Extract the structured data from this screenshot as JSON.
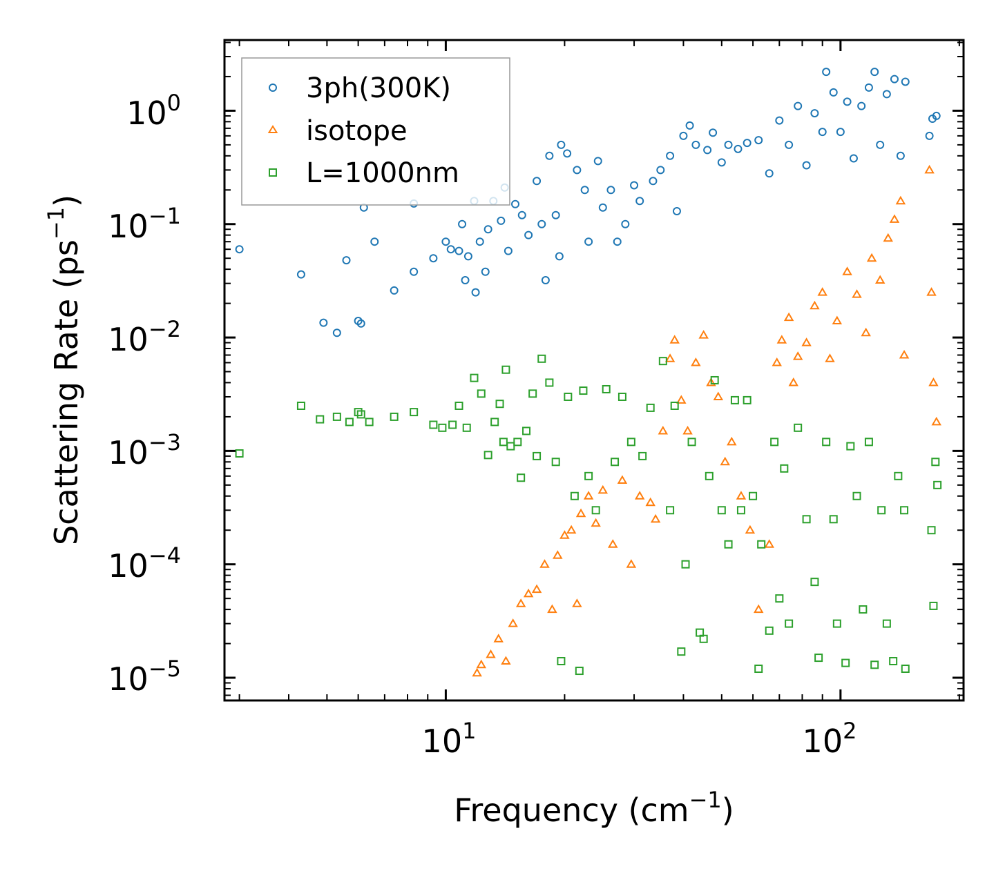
{
  "chart_data": {
    "type": "scatter",
    "title": "",
    "xlabel": "Frequency (cm",
    "xlabel_sup": "−1",
    "xlabel_close": ")",
    "ylabel": "Scattering Rate (ps",
    "ylabel_sup": "−1",
    "ylabel_close": ")",
    "xscale": "log",
    "yscale": "log",
    "xlim": [
      2.75,
      205
    ],
    "ylim": [
      6.3e-06,
      4.2
    ],
    "x_ticks": [
      {
        "base": "10",
        "exp": "1",
        "value": 10
      },
      {
        "base": "10",
        "exp": "2",
        "value": 100
      }
    ],
    "y_ticks": [
      {
        "base": "10",
        "exp": "0",
        "value": 1
      },
      {
        "base": "10",
        "exp": "−1",
        "value": 0.1
      },
      {
        "base": "10",
        "exp": "−2",
        "value": 0.01
      },
      {
        "base": "10",
        "exp": "−3",
        "value": 0.001
      },
      {
        "base": "10",
        "exp": "−4",
        "value": 0.0001
      },
      {
        "base": "10",
        "exp": "−5",
        "value": 1e-05
      }
    ],
    "legend_position": "top-left",
    "series": [
      {
        "name": "3ph(300K)",
        "marker": "circle",
        "color": "#1f77b4",
        "points": [
          [
            3.0,
            0.06
          ],
          [
            4.3,
            0.036
          ],
          [
            4.9,
            0.0135
          ],
          [
            5.3,
            0.011
          ],
          [
            5.6,
            0.048
          ],
          [
            6.0,
            0.014
          ],
          [
            6.1,
            0.0133
          ],
          [
            6.2,
            0.14
          ],
          [
            6.6,
            0.07
          ],
          [
            7.4,
            0.026
          ],
          [
            8.3,
            0.038
          ],
          [
            8.3,
            0.152
          ],
          [
            9.3,
            0.05
          ],
          [
            10.0,
            0.07
          ],
          [
            10.3,
            0.06
          ],
          [
            10.8,
            0.058
          ],
          [
            11.0,
            0.1
          ],
          [
            11.2,
            0.032
          ],
          [
            11.4,
            0.052
          ],
          [
            11.8,
            0.16
          ],
          [
            11.9,
            0.025
          ],
          [
            12.2,
            0.07
          ],
          [
            12.6,
            0.038
          ],
          [
            12.8,
            0.09
          ],
          [
            13.2,
            0.16
          ],
          [
            13.8,
            0.107
          ],
          [
            14.1,
            0.21
          ],
          [
            14.4,
            0.058
          ],
          [
            15.0,
            0.15
          ],
          [
            15.6,
            0.12
          ],
          [
            16.2,
            0.08
          ],
          [
            17.0,
            0.24
          ],
          [
            17.5,
            0.1
          ],
          [
            17.9,
            0.032
          ],
          [
            18.3,
            0.4
          ],
          [
            19.0,
            0.12
          ],
          [
            19.4,
            0.052
          ],
          [
            19.6,
            0.5
          ],
          [
            20.3,
            0.42
          ],
          [
            21.5,
            0.3
          ],
          [
            22.5,
            0.2
          ],
          [
            23.0,
            0.07
          ],
          [
            24.3,
            0.36
          ],
          [
            25.0,
            0.14
          ],
          [
            26.2,
            0.2
          ],
          [
            27.2,
            0.07
          ],
          [
            28.5,
            0.1
          ],
          [
            30.0,
            0.22
          ],
          [
            31.0,
            0.16
          ],
          [
            33.5,
            0.24
          ],
          [
            35.0,
            0.3
          ],
          [
            37.0,
            0.4
          ],
          [
            38.5,
            0.13
          ],
          [
            40.0,
            0.6
          ],
          [
            41.5,
            0.74
          ],
          [
            43.0,
            0.5
          ],
          [
            46.0,
            0.45
          ],
          [
            47.5,
            0.64
          ],
          [
            50.0,
            0.35
          ],
          [
            52.0,
            0.5
          ],
          [
            55.0,
            0.46
          ],
          [
            58.0,
            0.52
          ],
          [
            62.0,
            0.55
          ],
          [
            66.0,
            0.28
          ],
          [
            70.0,
            0.82
          ],
          [
            74.0,
            0.5
          ],
          [
            78.0,
            1.1
          ],
          [
            82.0,
            0.33
          ],
          [
            86.0,
            0.95
          ],
          [
            90.0,
            0.65
          ],
          [
            92.0,
            2.2
          ],
          [
            96.0,
            1.45
          ],
          [
            100.0,
            0.65
          ],
          [
            104.0,
            1.2
          ],
          [
            108.0,
            0.38
          ],
          [
            113.0,
            1.1
          ],
          [
            118.0,
            1.6
          ],
          [
            122.0,
            2.2
          ],
          [
            126.0,
            0.5
          ],
          [
            131.0,
            1.4
          ],
          [
            137.0,
            1.9
          ],
          [
            142.0,
            0.4
          ],
          [
            146.0,
            1.8
          ],
          [
            168.0,
            0.6
          ],
          [
            171.0,
            0.85
          ],
          [
            175.0,
            0.9
          ]
        ]
      },
      {
        "name": "isotope",
        "marker": "triangle",
        "color": "#ff7f0e",
        "points": [
          [
            12.0,
            1.1e-05
          ],
          [
            12.3,
            1.3e-05
          ],
          [
            13.0,
            1.6e-05
          ],
          [
            13.6,
            2.2e-05
          ],
          [
            14.2,
            1.4e-05
          ],
          [
            14.8,
            3e-05
          ],
          [
            15.5,
            4.5e-05
          ],
          [
            16.2,
            5.5e-05
          ],
          [
            17.0,
            6e-05
          ],
          [
            17.8,
            0.0001
          ],
          [
            18.6,
            4e-05
          ],
          [
            19.2,
            0.00012
          ],
          [
            20.0,
            0.00018
          ],
          [
            20.8,
            0.0002
          ],
          [
            21.5,
            4.5e-05
          ],
          [
            22.0,
            0.00028
          ],
          [
            23.0,
            0.0004
          ],
          [
            24.0,
            0.00023
          ],
          [
            25.0,
            0.00045
          ],
          [
            26.5,
            0.00015
          ],
          [
            28.0,
            0.00055
          ],
          [
            29.5,
            0.0001
          ],
          [
            31.0,
            0.0004
          ],
          [
            33.0,
            0.00035
          ],
          [
            34.0,
            0.00025
          ],
          [
            35.5,
            0.0015
          ],
          [
            37.0,
            0.0065
          ],
          [
            38.0,
            0.0095
          ],
          [
            39.5,
            0.0028
          ],
          [
            41.0,
            0.0015
          ],
          [
            43.0,
            0.006
          ],
          [
            45.0,
            0.0105
          ],
          [
            47.0,
            0.004
          ],
          [
            49.0,
            0.003
          ],
          [
            51.0,
            0.0008
          ],
          [
            53.0,
            0.0012
          ],
          [
            56.0,
            0.0004
          ],
          [
            59.0,
            0.0002
          ],
          [
            62.0,
            4e-05
          ],
          [
            66.0,
            0.00015
          ],
          [
            69.0,
            0.006
          ],
          [
            71.0,
            0.0095
          ],
          [
            74.0,
            0.015
          ],
          [
            76.0,
            0.004
          ],
          [
            78.0,
            0.0068
          ],
          [
            82.0,
            0.009
          ],
          [
            86.0,
            0.019
          ],
          [
            90.0,
            0.025
          ],
          [
            94.0,
            0.0065
          ],
          [
            98.0,
            0.014
          ],
          [
            104.0,
            0.038
          ],
          [
            110.0,
            0.024
          ],
          [
            116.0,
            0.011
          ],
          [
            120.0,
            0.05
          ],
          [
            126.0,
            0.032
          ],
          [
            132.0,
            0.075
          ],
          [
            137.0,
            0.11
          ],
          [
            142.0,
            0.16
          ],
          [
            145.0,
            0.007
          ],
          [
            168.0,
            0.3
          ],
          [
            170.0,
            0.025
          ],
          [
            172.0,
            0.004
          ],
          [
            175.0,
            0.0018
          ]
        ]
      },
      {
        "name": "L=1000nm",
        "marker": "square",
        "color": "#2ca02c",
        "points": [
          [
            3.0,
            0.00095
          ],
          [
            4.3,
            0.0025
          ],
          [
            4.8,
            0.0019
          ],
          [
            5.3,
            0.002
          ],
          [
            5.7,
            0.0018
          ],
          [
            6.0,
            0.0022
          ],
          [
            6.1,
            0.0021
          ],
          [
            6.4,
            0.0018
          ],
          [
            7.4,
            0.002
          ],
          [
            8.3,
            0.0022
          ],
          [
            9.3,
            0.0017
          ],
          [
            9.8,
            0.0016
          ],
          [
            10.4,
            0.0017
          ],
          [
            10.8,
            0.0025
          ],
          [
            11.3,
            0.0016
          ],
          [
            11.8,
            0.0044
          ],
          [
            12.3,
            0.0032
          ],
          [
            12.8,
            0.00092
          ],
          [
            13.3,
            0.0018
          ],
          [
            13.7,
            0.0026
          ],
          [
            14.0,
            0.0012
          ],
          [
            14.2,
            0.0052
          ],
          [
            14.6,
            0.0011
          ],
          [
            15.2,
            0.0012
          ],
          [
            15.5,
            0.00058
          ],
          [
            16.0,
            0.0015
          ],
          [
            16.6,
            0.0032
          ],
          [
            17.0,
            0.0009
          ],
          [
            17.5,
            0.0065
          ],
          [
            18.3,
            0.004
          ],
          [
            19.0,
            0.0008
          ],
          [
            19.6,
            1.4e-05
          ],
          [
            20.4,
            0.003
          ],
          [
            21.2,
            0.0004
          ],
          [
            21.8,
            1.15e-05
          ],
          [
            22.3,
            0.0034
          ],
          [
            23.0,
            0.0006
          ],
          [
            24.0,
            0.0003
          ],
          [
            25.5,
            0.0035
          ],
          [
            26.8,
            0.0008
          ],
          [
            28.0,
            0.003
          ],
          [
            29.5,
            0.0012
          ],
          [
            31.5,
            0.0009
          ],
          [
            33.0,
            0.0024
          ],
          [
            35.5,
            0.0062
          ],
          [
            37.0,
            0.0003
          ],
          [
            38.0,
            0.0025
          ],
          [
            39.5,
            1.7e-05
          ],
          [
            40.5,
            0.0001
          ],
          [
            42.0,
            0.0012
          ],
          [
            44.0,
            2.5e-05
          ],
          [
            45.0,
            2.2e-05
          ],
          [
            46.5,
            0.0006
          ],
          [
            48.0,
            0.0042
          ],
          [
            50.0,
            0.0003
          ],
          [
            52.0,
            0.00015
          ],
          [
            54.0,
            0.0028
          ],
          [
            56.0,
            0.0003
          ],
          [
            58.0,
            0.0028
          ],
          [
            60.0,
            0.0004
          ],
          [
            62.0,
            1.2e-05
          ],
          [
            63.0,
            0.00015
          ],
          [
            66.0,
            2.6e-05
          ],
          [
            68.0,
            0.0012
          ],
          [
            70.0,
            5e-05
          ],
          [
            72.0,
            0.0007
          ],
          [
            74.0,
            3e-05
          ],
          [
            78.0,
            0.0016
          ],
          [
            82.0,
            0.00025
          ],
          [
            86.0,
            7e-05
          ],
          [
            88.0,
            1.5e-05
          ],
          [
            92.0,
            0.0012
          ],
          [
            96.0,
            0.00025
          ],
          [
            98.0,
            3e-05
          ],
          [
            103.0,
            1.35e-05
          ],
          [
            106.0,
            0.0011
          ],
          [
            110.0,
            0.0004
          ],
          [
            114.0,
            4e-05
          ],
          [
            118.0,
            0.0012
          ],
          [
            122.0,
            1.3e-05
          ],
          [
            127.0,
            0.0003
          ],
          [
            131.0,
            3e-05
          ],
          [
            136.0,
            1.4e-05
          ],
          [
            140.0,
            0.0006
          ],
          [
            145.0,
            0.0003
          ],
          [
            146.0,
            1.2e-05
          ],
          [
            170.0,
            0.0002
          ],
          [
            172.0,
            4.3e-05
          ],
          [
            174.0,
            0.0008
          ],
          [
            176.0,
            0.0005
          ]
        ]
      }
    ]
  }
}
